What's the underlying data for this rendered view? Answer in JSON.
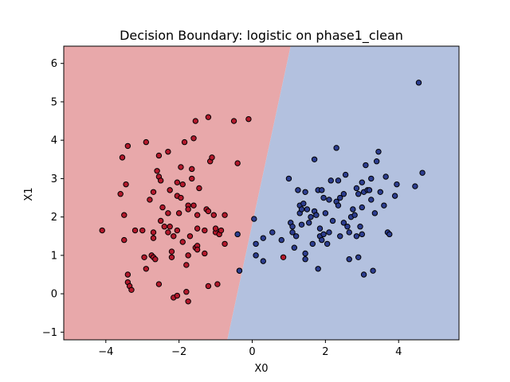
{
  "chart_data": {
    "type": "scatter",
    "title": "Decision Boundary: logistic on phase1_clean",
    "xlabel": "X0",
    "ylabel": "X1",
    "xlim": [
      -5.15,
      5.65
    ],
    "ylim": [
      -1.2,
      6.45
    ],
    "xticks": [
      -4,
      -2,
      0,
      2,
      4
    ],
    "yticks": [
      -1,
      0,
      1,
      2,
      3,
      4,
      5,
      6
    ],
    "grid": false,
    "regions": [
      {
        "name": "class-0-region",
        "color": "#e8a8aa"
      },
      {
        "name": "class-1-region",
        "color": "#b3c1df"
      }
    ],
    "boundary": {
      "bottom": [
        -0.68,
        -1.2
      ],
      "top": [
        1.05,
        6.45
      ]
    },
    "series": [
      {
        "color": "#b2182b",
        "points": [
          [
            -4.1,
            1.65
          ],
          [
            -3.6,
            2.6
          ],
          [
            -3.55,
            3.55
          ],
          [
            -3.5,
            2.05
          ],
          [
            -3.45,
            2.85
          ],
          [
            -3.4,
            3.85
          ],
          [
            -3.5,
            1.4
          ],
          [
            -3.4,
            0.5
          ],
          [
            -3.4,
            0.3
          ],
          [
            -3.35,
            0.2
          ],
          [
            -3.3,
            0.1
          ],
          [
            -3.2,
            1.65
          ],
          [
            -3.0,
            1.65
          ],
          [
            -2.9,
            3.95
          ],
          [
            -2.95,
            0.95
          ],
          [
            -2.9,
            0.65
          ],
          [
            -2.8,
            2.45
          ],
          [
            -2.75,
            1.0
          ],
          [
            -2.7,
            0.95
          ],
          [
            -2.7,
            1.6
          ],
          [
            -2.7,
            1.45
          ],
          [
            -2.65,
            0.9
          ],
          [
            -2.6,
            3.2
          ],
          [
            -2.55,
            3.05
          ],
          [
            -2.55,
            3.6
          ],
          [
            -2.55,
            0.25
          ],
          [
            -2.5,
            1.9
          ],
          [
            -2.45,
            2.25
          ],
          [
            -2.4,
            1.75
          ],
          [
            -2.3,
            3.7
          ],
          [
            -2.3,
            2.1
          ],
          [
            -2.3,
            1.6
          ],
          [
            -2.25,
            1.75
          ],
          [
            -2.25,
            2.7
          ],
          [
            -2.2,
            1.1
          ],
          [
            -2.2,
            0.95
          ],
          [
            -2.15,
            1.5
          ],
          [
            -2.15,
            -0.1
          ],
          [
            -2.05,
            -0.05
          ],
          [
            -2.05,
            2.55
          ],
          [
            -2.05,
            2.9
          ],
          [
            -1.95,
            2.5
          ],
          [
            -1.9,
            2.85
          ],
          [
            -1.9,
            1.35
          ],
          [
            -1.85,
            3.95
          ],
          [
            -1.8,
            0.75
          ],
          [
            -1.8,
            0.05
          ],
          [
            -1.75,
            -0.2
          ],
          [
            -1.75,
            1.0
          ],
          [
            -1.75,
            2.3
          ],
          [
            -1.75,
            2.2
          ],
          [
            -1.7,
            1.5
          ],
          [
            -1.65,
            3.0
          ],
          [
            -1.65,
            3.25
          ],
          [
            -1.6,
            4.05
          ],
          [
            -1.6,
            2.3
          ],
          [
            -1.55,
            1.2
          ],
          [
            -1.5,
            1.25
          ],
          [
            -1.5,
            1.15
          ],
          [
            -1.5,
            2.05
          ],
          [
            -1.55,
            4.5
          ],
          [
            -1.5,
            1.7
          ],
          [
            -1.45,
            2.75
          ],
          [
            -1.3,
            1.65
          ],
          [
            -1.25,
            2.2
          ],
          [
            -1.2,
            0.2
          ],
          [
            -1.2,
            2.15
          ],
          [
            -1.2,
            4.6
          ],
          [
            -1.15,
            3.45
          ],
          [
            -1.1,
            3.55
          ],
          [
            -1.05,
            2.05
          ],
          [
            -1.0,
            1.6
          ],
          [
            -0.95,
            0.25
          ],
          [
            -0.9,
            1.55
          ],
          [
            -0.85,
            1.65
          ],
          [
            -0.75,
            2.05
          ],
          [
            -0.75,
            1.3
          ],
          [
            -0.5,
            4.5
          ],
          [
            -0.4,
            3.4
          ],
          [
            -0.35,
            0.6
          ],
          [
            -0.1,
            4.55
          ],
          [
            0.85,
            0.95
          ],
          [
            -2.5,
            2.95
          ],
          [
            -1.95,
            3.3
          ],
          [
            -2.05,
            1.65
          ],
          [
            -1.3,
            1.05
          ],
          [
            -1.0,
            1.7
          ],
          [
            -2.7,
            2.65
          ],
          [
            -2.0,
            2.1
          ]
        ]
      },
      {
        "color": "#2c3d8f",
        "points": [
          [
            -0.4,
            1.55
          ],
          [
            -0.35,
            0.6
          ],
          [
            0.05,
            1.95
          ],
          [
            0.1,
            1.3
          ],
          [
            0.1,
            1.0
          ],
          [
            0.3,
            0.85
          ],
          [
            0.3,
            1.45
          ],
          [
            0.55,
            1.6
          ],
          [
            0.8,
            1.4
          ],
          [
            1.0,
            3.0
          ],
          [
            1.05,
            1.85
          ],
          [
            1.1,
            1.75
          ],
          [
            1.1,
            1.6
          ],
          [
            1.15,
            1.2
          ],
          [
            1.2,
            1.5
          ],
          [
            1.25,
            2.7
          ],
          [
            1.3,
            2.3
          ],
          [
            1.3,
            2.1
          ],
          [
            1.35,
            1.8
          ],
          [
            1.35,
            2.2
          ],
          [
            1.4,
            2.35
          ],
          [
            1.45,
            1.05
          ],
          [
            1.45,
            0.9
          ],
          [
            1.5,
            2.2
          ],
          [
            1.55,
            1.85
          ],
          [
            1.6,
            2.0
          ],
          [
            1.65,
            1.3
          ],
          [
            1.7,
            2.15
          ],
          [
            1.7,
            3.5
          ],
          [
            1.75,
            2.05
          ],
          [
            1.8,
            2.7
          ],
          [
            1.8,
            0.65
          ],
          [
            1.85,
            1.7
          ],
          [
            1.85,
            1.5
          ],
          [
            1.9,
            1.4
          ],
          [
            1.9,
            2.7
          ],
          [
            1.95,
            1.55
          ],
          [
            2.0,
            2.1
          ],
          [
            2.05,
            1.3
          ],
          [
            2.1,
            1.6
          ],
          [
            2.1,
            2.45
          ],
          [
            2.15,
            2.95
          ],
          [
            2.2,
            1.9
          ],
          [
            2.3,
            2.4
          ],
          [
            2.3,
            3.8
          ],
          [
            2.35,
            2.95
          ],
          [
            2.4,
            1.5
          ],
          [
            2.4,
            2.5
          ],
          [
            2.5,
            1.85
          ],
          [
            2.5,
            2.6
          ],
          [
            2.55,
            3.1
          ],
          [
            2.6,
            1.75
          ],
          [
            2.65,
            1.6
          ],
          [
            2.65,
            0.9
          ],
          [
            2.7,
            2.0
          ],
          [
            2.75,
            2.2
          ],
          [
            2.8,
            2.05
          ],
          [
            2.85,
            2.75
          ],
          [
            2.85,
            1.5
          ],
          [
            2.9,
            0.95
          ],
          [
            2.9,
            2.6
          ],
          [
            2.95,
            1.75
          ],
          [
            3.0,
            2.9
          ],
          [
            3.0,
            2.25
          ],
          [
            3.05,
            2.65
          ],
          [
            3.05,
            0.5
          ],
          [
            3.1,
            3.35
          ],
          [
            3.15,
            2.7
          ],
          [
            3.2,
            2.7
          ],
          [
            3.25,
            2.45
          ],
          [
            3.25,
            3.0
          ],
          [
            3.3,
            0.6
          ],
          [
            3.35,
            2.1
          ],
          [
            3.4,
            3.45
          ],
          [
            3.45,
            3.7
          ],
          [
            3.5,
            2.65
          ],
          [
            3.6,
            2.3
          ],
          [
            3.65,
            3.05
          ],
          [
            3.7,
            1.6
          ],
          [
            3.75,
            1.55
          ],
          [
            3.9,
            2.55
          ],
          [
            3.95,
            2.85
          ],
          [
            4.45,
            2.8
          ],
          [
            4.55,
            5.5
          ],
          [
            4.65,
            3.15
          ],
          [
            1.95,
            2.5
          ],
          [
            2.35,
            2.3
          ],
          [
            3.0,
            1.55
          ],
          [
            1.45,
            2.65
          ]
        ]
      }
    ]
  }
}
